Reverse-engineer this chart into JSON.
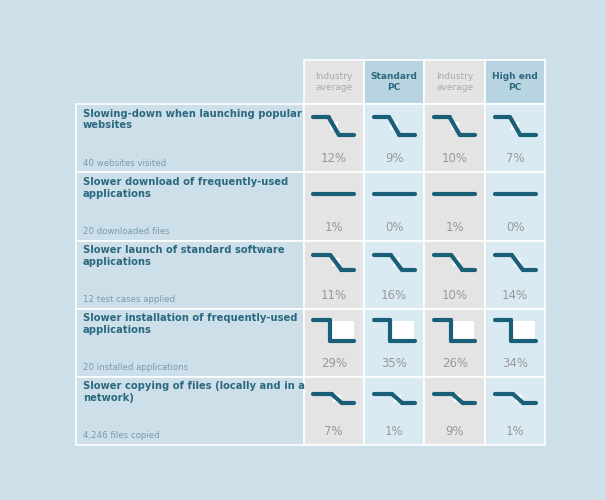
{
  "bg_color": "#cde0ea",
  "cell_bg_blue": "#cde0ea",
  "cell_bg_grey": "#e4e4e4",
  "cell_bg_blue_light": "#daeaf2",
  "header_bg_blue": "#b8d4e0",
  "dark_blue": "#1a5f78",
  "text_dark": "#2c6880",
  "text_grey": "#aaaaaa",
  "text_grey_value": "#999999",
  "border_color": "#ffffff",
  "rows": [
    {
      "title": "Slowing-down when launching popular\nwebsites",
      "subtitle": "40 websites visited",
      "values": [
        "12%",
        "9%",
        "10%",
        "7%"
      ],
      "shape": "wave"
    },
    {
      "title": "Slower download of frequently-used\napplications",
      "subtitle": "20 downloaded files",
      "values": [
        "1%",
        "0%",
        "1%",
        "0%"
      ],
      "shape": "flat"
    },
    {
      "title": "Slower launch of standard software\napplications",
      "subtitle": "12 test cases applied",
      "values": [
        "11%",
        "16%",
        "10%",
        "14%"
      ],
      "shape": "wave_small"
    },
    {
      "title": "Slower installation of frequently-used\napplications",
      "subtitle": "20 installed applications",
      "values": [
        "29%",
        "35%",
        "26%",
        "34%"
      ],
      "shape": "step_down"
    },
    {
      "title": "Slower copying of files (locally and in a\nnetwork)",
      "subtitle": "4,246 files copied",
      "values": [
        "7%",
        "1%",
        "9%",
        "1%"
      ],
      "shape": "flat_wave"
    }
  ],
  "col_headers": [
    "Industry\naverage",
    "Standard\nPC",
    "Industry\naverage",
    "High end\nPC"
  ],
  "col_header_is_blue": [
    false,
    true,
    false,
    true
  ],
  "sparkline_color": "#1a5f78",
  "sparkline_lw": 3.0
}
